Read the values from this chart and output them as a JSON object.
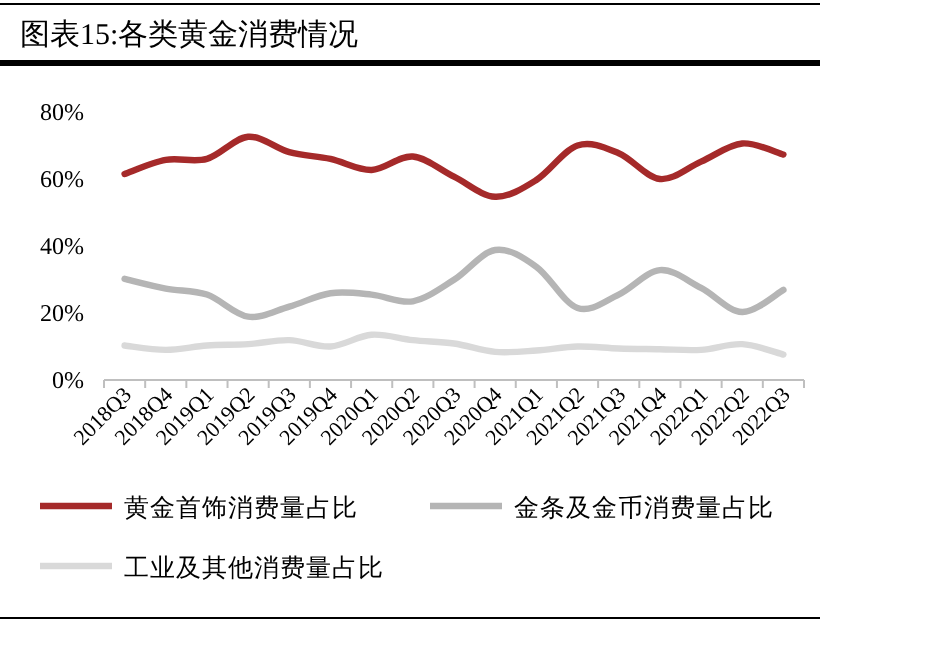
{
  "chart_data": {
    "type": "line",
    "title": "图表15:各类黄金消费情况",
    "categories": [
      "2018Q3",
      "2018Q4",
      "2019Q1",
      "2019Q2",
      "2019Q3",
      "2019Q4",
      "2020Q1",
      "2020Q2",
      "2020Q3",
      "2020Q4",
      "2021Q1",
      "2021Q2",
      "2021Q3",
      "2021Q4",
      "2022Q1",
      "2022Q2",
      "2022Q3"
    ],
    "series": [
      {
        "name": "黄金首饰消费量占比",
        "color": "#a52a2a",
        "values": [
          61.5,
          65.7,
          66,
          72.6,
          68,
          66,
          62.7,
          66.7,
          60.7,
          54.7,
          59.7,
          70,
          67.7,
          60,
          65.2,
          70.6,
          67.3
        ]
      },
      {
        "name": "金条及金币消费量占比",
        "color": "#b5b5b5",
        "values": [
          30.2,
          27.3,
          25.5,
          18.9,
          21.9,
          25.9,
          25.5,
          23.5,
          29.9,
          38.8,
          33.8,
          21.5,
          25.5,
          32.8,
          27.5,
          20.3,
          26.9
        ]
      },
      {
        "name": "工业及其他消费量占比",
        "color": "#d9d9d9",
        "values": [
          10.3,
          9,
          10.3,
          10.7,
          11.9,
          10,
          13.5,
          11.9,
          10.9,
          8.4,
          8.8,
          10,
          9.4,
          9.2,
          9,
          10.7,
          7.6
        ]
      }
    ],
    "ylim": [
      0,
      80
    ],
    "yticks": [
      {
        "value": 0,
        "label": "0%"
      },
      {
        "value": 20,
        "label": "20%"
      },
      {
        "value": 40,
        "label": "40%"
      },
      {
        "value": 60,
        "label": "60%"
      },
      {
        "value": 80,
        "label": "80%"
      }
    ],
    "grid": false,
    "legend": "bottom",
    "marker": "none",
    "line_style": "solid"
  }
}
